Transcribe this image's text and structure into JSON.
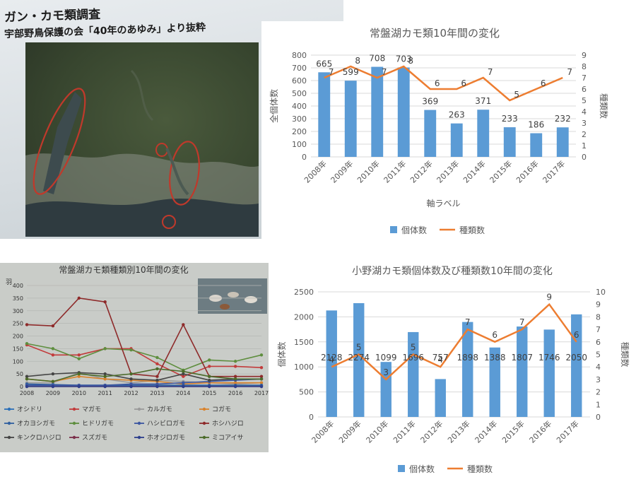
{
  "slide": {
    "title": "ガン・カモ類調査",
    "subtitle": "宇部野鳥保護の会「40年のあゆみ」より抜粋"
  },
  "colors": {
    "bar": "#5b9bd5",
    "line": "#ed7d31"
  },
  "chart_data": [
    {
      "type": "bar",
      "title": "常盤湖カモ類10年間の変化",
      "xlabel": "軸ラベル",
      "ylabel": "全個体数",
      "y2label": "種類数",
      "categories": [
        "2008年",
        "2009年",
        "2010年",
        "2011年",
        "2012年",
        "2013年",
        "2014年",
        "2015年",
        "2016年",
        "2017年"
      ],
      "ylim": [
        0,
        800
      ],
      "y2lim": [
        0,
        9
      ],
      "yticks": [
        0,
        100,
        200,
        300,
        400,
        500,
        600,
        700,
        800
      ],
      "y2ticks": [
        0,
        1,
        2,
        3,
        4,
        5,
        6,
        7,
        8,
        9
      ],
      "series": [
        {
          "name": "個体数",
          "type": "bar",
          "values": [
            665,
            599,
            708,
            703,
            369,
            263,
            371,
            233,
            186,
            232
          ]
        },
        {
          "name": "種類数",
          "type": "line",
          "axis": "y2",
          "values": [
            7,
            8,
            7,
            8,
            6,
            6,
            7,
            5,
            6,
            7
          ]
        }
      ],
      "legend": "bottom"
    },
    {
      "type": "line",
      "title": "常盤湖カモ類種類別10年間の変化",
      "ylabel": "羽",
      "categories": [
        "2008",
        "2009",
        "2010",
        "2011",
        "2012",
        "2013",
        "2014",
        "2015",
        "2016",
        "2017"
      ],
      "ylim": [
        0,
        400
      ],
      "yticks": [
        0,
        50,
        100,
        150,
        200,
        250,
        300,
        350,
        400
      ],
      "series": [
        {
          "name": "オシドリ",
          "color": "#2a6fb8",
          "values": [
            5,
            5,
            5,
            5,
            5,
            5,
            5,
            5,
            5,
            5
          ]
        },
        {
          "name": "マガモ",
          "color": "#c23b3b",
          "values": [
            165,
            125,
            125,
            150,
            150,
            90,
            40,
            80,
            80,
            75
          ]
        },
        {
          "name": "カルガモ",
          "color": "#9a9a9a",
          "values": [
            15,
            15,
            55,
            30,
            15,
            25,
            20,
            15,
            10,
            15
          ]
        },
        {
          "name": "コガモ",
          "color": "#d9822b",
          "values": [
            30,
            20,
            40,
            30,
            25,
            20,
            10,
            15,
            15,
            15
          ]
        },
        {
          "name": "オカヨシガモ",
          "color": "#2f5f9f",
          "values": [
            10,
            8,
            5,
            5,
            5,
            5,
            5,
            5,
            5,
            5
          ]
        },
        {
          "name": "ヒドリガモ",
          "color": "#5e8e3e",
          "values": [
            170,
            150,
            110,
            150,
            145,
            115,
            65,
            105,
            100,
            125
          ]
        },
        {
          "name": "ハシビロガモ",
          "color": "#3a55a0",
          "values": [
            5,
            5,
            5,
            5,
            10,
            10,
            15,
            20,
            25,
            30
          ]
        },
        {
          "name": "ホシハジロ",
          "color": "#8e2a2a",
          "values": [
            245,
            240,
            350,
            335,
            50,
            40,
            245,
            40,
            40,
            40
          ]
        },
        {
          "name": "キンクロハジロ",
          "color": "#444444",
          "values": [
            40,
            50,
            55,
            50,
            30,
            25,
            50,
            25,
            30,
            30
          ]
        },
        {
          "name": "スズガモ",
          "color": "#7a2e4a",
          "values": [
            0,
            0,
            0,
            0,
            0,
            0,
            0,
            0,
            0,
            0
          ]
        },
        {
          "name": "ホオジロガモ",
          "color": "#2c3e8c",
          "values": [
            0,
            0,
            0,
            0,
            0,
            0,
            0,
            0,
            0,
            0
          ]
        },
        {
          "name": "ミコアイサ",
          "color": "#4b6b2a",
          "values": [
            30,
            20,
            50,
            40,
            50,
            70,
            60,
            40,
            30,
            30
          ]
        }
      ],
      "legend": "bottom"
    },
    {
      "type": "bar",
      "title": "小野湖カモ類個体数及び種類数10年間の変化",
      "ylabel": "個体数",
      "y2label": "種類数",
      "categories": [
        "2008年",
        "2009年",
        "2010年",
        "2011年",
        "2012年",
        "2013年",
        "2014年",
        "2015年",
        "2016年",
        "2017年"
      ],
      "ylim": [
        0,
        2500
      ],
      "y2lim": [
        0,
        10
      ],
      "yticks": [
        0,
        500,
        1000,
        1500,
        2000,
        2500
      ],
      "y2ticks": [
        0,
        1,
        2,
        3,
        4,
        5,
        6,
        7,
        8,
        9,
        10
      ],
      "series": [
        {
          "name": "個体数",
          "type": "bar",
          "values": [
            2128,
            2274,
            1099,
            1696,
            757,
            1898,
            1388,
            1807,
            1746,
            2050
          ]
        },
        {
          "name": "種類数",
          "type": "line",
          "axis": "y2",
          "values": [
            4,
            5,
            3,
            5,
            4,
            7,
            6,
            7,
            9,
            6
          ]
        }
      ],
      "legend": "bottom"
    }
  ]
}
